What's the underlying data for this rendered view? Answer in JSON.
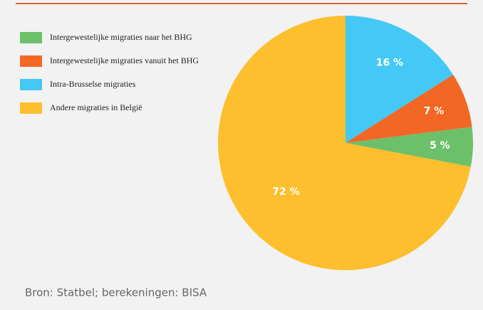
{
  "chart_data": {
    "type": "pie",
    "categories": [
      "Intergewestelijke migraties naar het BHG",
      "Intergewestelijke migraties vanuit het BHG",
      "Intra-Brusselse migraties",
      "Andere migraties in België"
    ],
    "values": [
      5,
      7,
      16,
      72
    ],
    "value_labels": [
      "5 %",
      "7 %",
      "16 %",
      "72 %"
    ],
    "colors": [
      "#6cc06a",
      "#f26724",
      "#44c8f5",
      "#fdbf2e"
    ],
    "source": "Bron: Statbel; berekeningen: BISA"
  }
}
